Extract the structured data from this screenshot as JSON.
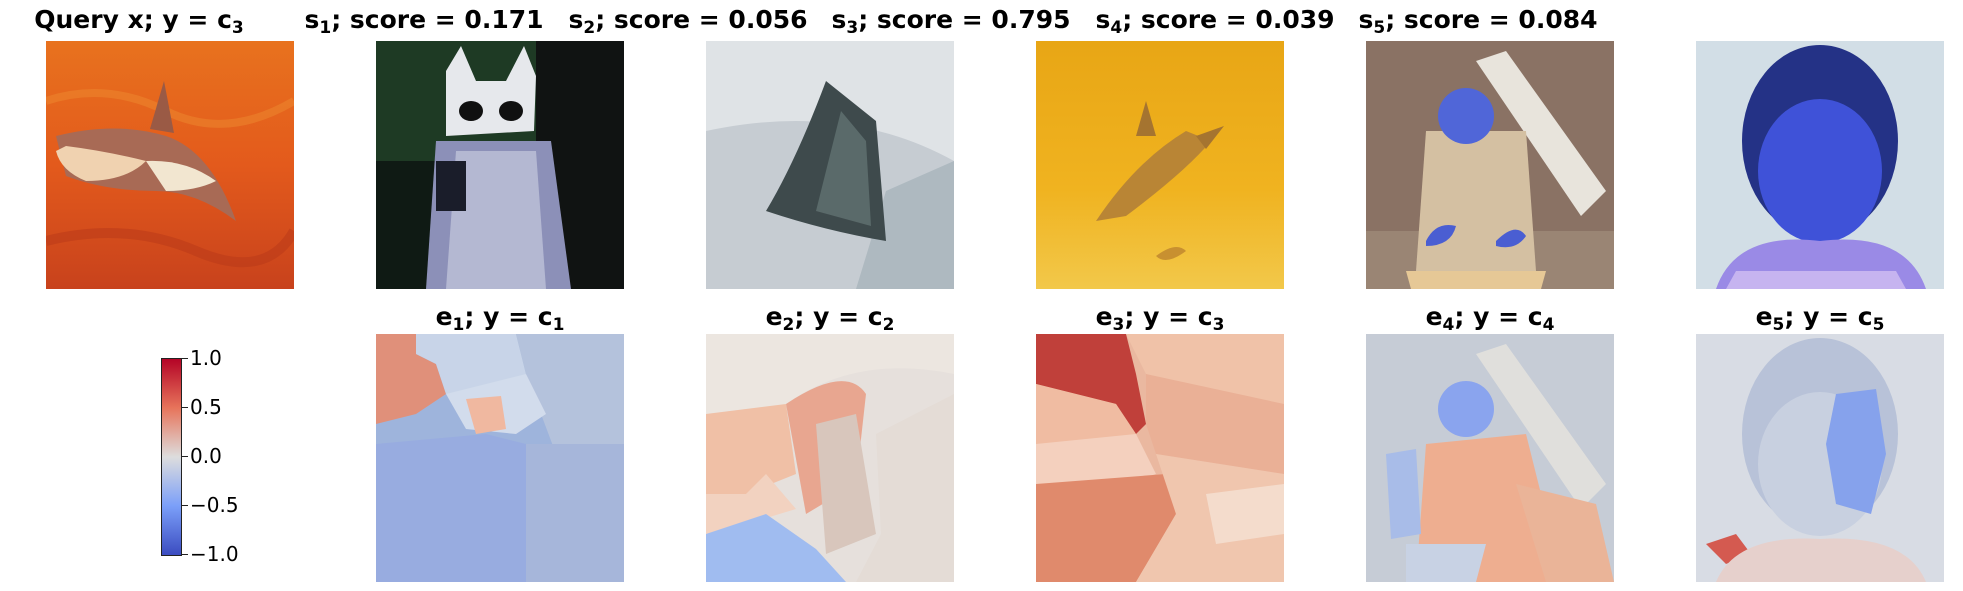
{
  "query": {
    "title": "Query x; y = c",
    "class_sub": "3"
  },
  "samples": [
    {
      "sub": "1",
      "title_rest": "; score = 0.171"
    },
    {
      "sub": "2",
      "title_rest": "; score = 0.056"
    },
    {
      "sub": "3",
      "title_rest": "; score = 0.795"
    },
    {
      "sub": "4",
      "title_rest": "; score = 0.039"
    },
    {
      "sub": "5",
      "title_rest": "; score = 0.084"
    }
  ],
  "explanations": [
    {
      "sub": "1",
      "class_sub": "1"
    },
    {
      "sub": "2",
      "class_sub": "2"
    },
    {
      "sub": "3",
      "class_sub": "3"
    },
    {
      "sub": "4",
      "class_sub": "4"
    },
    {
      "sub": "5",
      "class_sub": "5"
    }
  ],
  "labels": {
    "s": "s",
    "e": "e",
    "y_eq_c": "; y = c"
  },
  "colorbar": {
    "ticks": [
      "1.0",
      "0.5",
      "0.0",
      "−0.5",
      "−1.0"
    ],
    "colormap": "coolwarm",
    "color_high": "#b40426",
    "color_mid": "#dddddd",
    "color_low": "#3b4cc0"
  }
}
